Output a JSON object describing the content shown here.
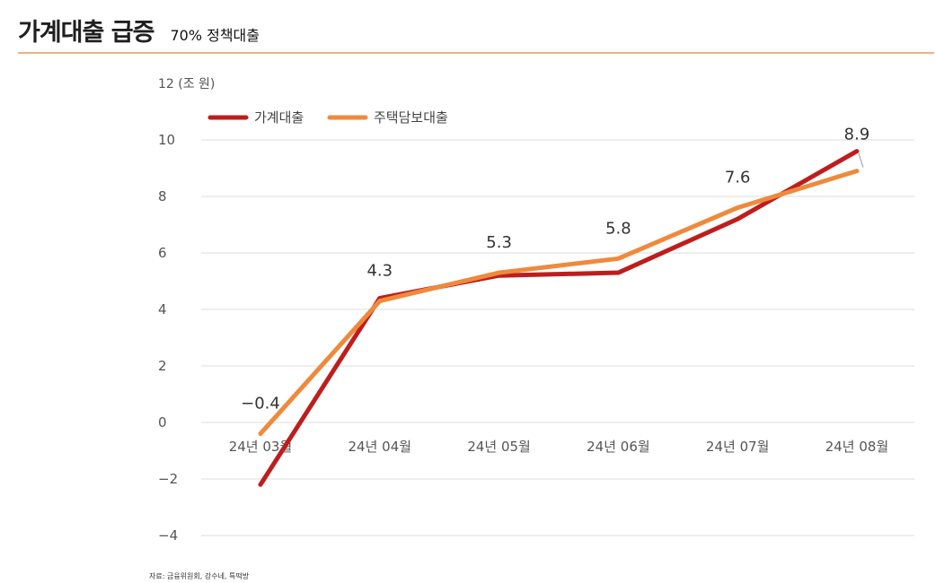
{
  "header": {
    "title": "가계대출 급증",
    "subtitle": "70% 정책대출"
  },
  "source": "자료: 금융위원회, 강수네, 특떡방",
  "colors": {
    "household": "#bf1d1d",
    "mortgage": "#ee8a3c",
    "grid": "#dddddd",
    "rule": "#e8b48a"
  },
  "chart_data": {
    "type": "line",
    "title": "가계대출 급증",
    "subtitle": "70% 정책대출",
    "y_unit": "12 (조 원)",
    "categories": [
      "24년 03월",
      "24년 04월",
      "24년 05월",
      "24년 06월",
      "24년 07월",
      "24년 08월"
    ],
    "y_ticks": [
      "12 (조 원)",
      "10",
      "8",
      "6",
      "4",
      "2",
      "0",
      "−2",
      "−4"
    ],
    "ylim": [
      -4,
      12
    ],
    "grid": true,
    "legend_position": "top-left",
    "series": [
      {
        "name": "가계대출",
        "color": "#bf1d1d",
        "values": [
          -2.2,
          4.4,
          5.2,
          5.3,
          7.2,
          9.6
        ]
      },
      {
        "name": "주택담보대출",
        "color": "#ee8a3c",
        "values": [
          -0.4,
          4.3,
          5.3,
          5.8,
          7.6,
          8.9
        ]
      }
    ],
    "data_labels": [
      "−0.4",
      "4.3",
      "5.3",
      "5.8",
      "7.6",
      "8.9"
    ]
  }
}
